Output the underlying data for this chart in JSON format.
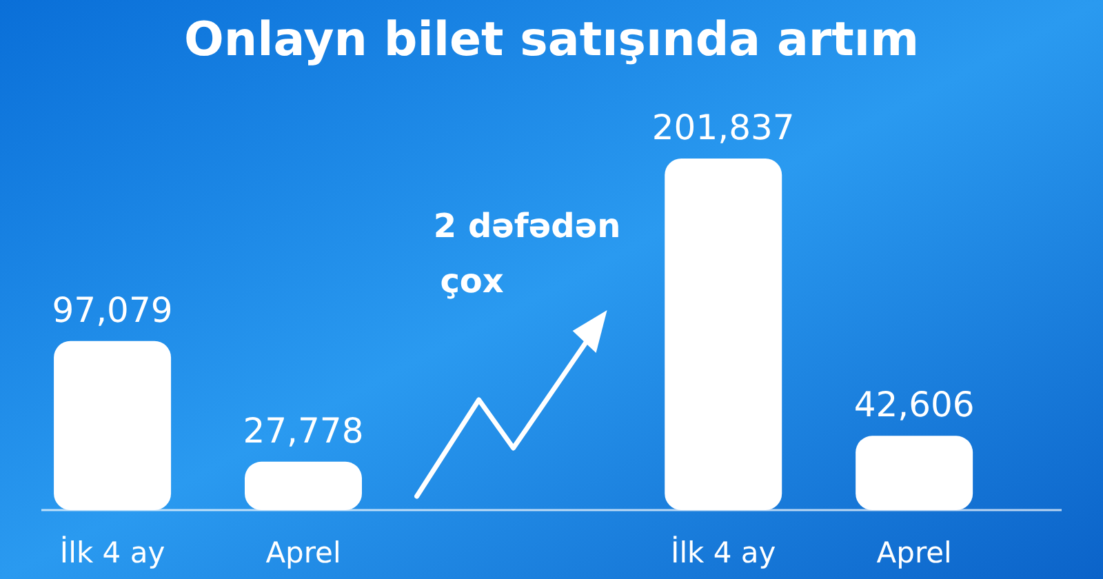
{
  "chart_data": {
    "type": "bar",
    "title": "Onlayn bilet satışında artım",
    "categories": [
      "İlk 4 ay",
      "Aprel",
      "İlk 4 ay",
      "Aprel"
    ],
    "values": [
      97079,
      27778,
      201837,
      42606
    ],
    "color": "#ffffff",
    "value_labels": [
      "97,079",
      "27,778",
      "201,837",
      "42,606"
    ],
    "annotations": [
      "2 dəfədən çox"
    ]
  }
}
